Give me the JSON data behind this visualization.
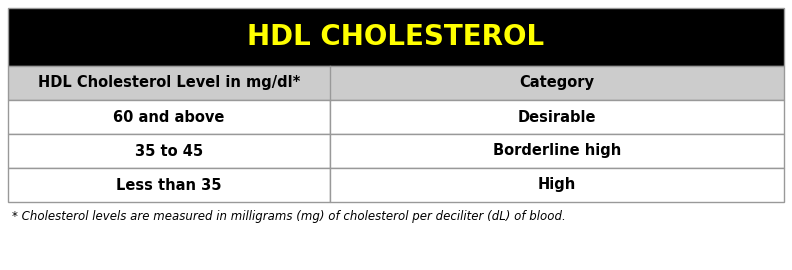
{
  "title": "HDL CHOLESTEROL",
  "title_color": "#FFFF00",
  "title_bg_color": "#000000",
  "header_row": [
    "HDL Cholesterol Level in mg/dl*",
    "Category"
  ],
  "header_bg_color": "#CCCCCC",
  "data_rows": [
    [
      "60 and above",
      "Desirable"
    ],
    [
      "35 to 45",
      "Borderline high"
    ],
    [
      "Less than 35",
      "High"
    ]
  ],
  "row_bg_colors": [
    "#FFFFFF",
    "#FFFFFF",
    "#FFFFFF"
  ],
  "footnote": "* Cholesterol levels are measured in milligrams (mg) of cholesterol per deciliter (dL) of blood.",
  "border_color": "#999999",
  "fig_bg_color": "#FFFFFF",
  "title_fontsize": 20,
  "header_fontsize": 10.5,
  "data_fontsize": 10.5,
  "footnote_fontsize": 8.5,
  "col_split": 0.415
}
